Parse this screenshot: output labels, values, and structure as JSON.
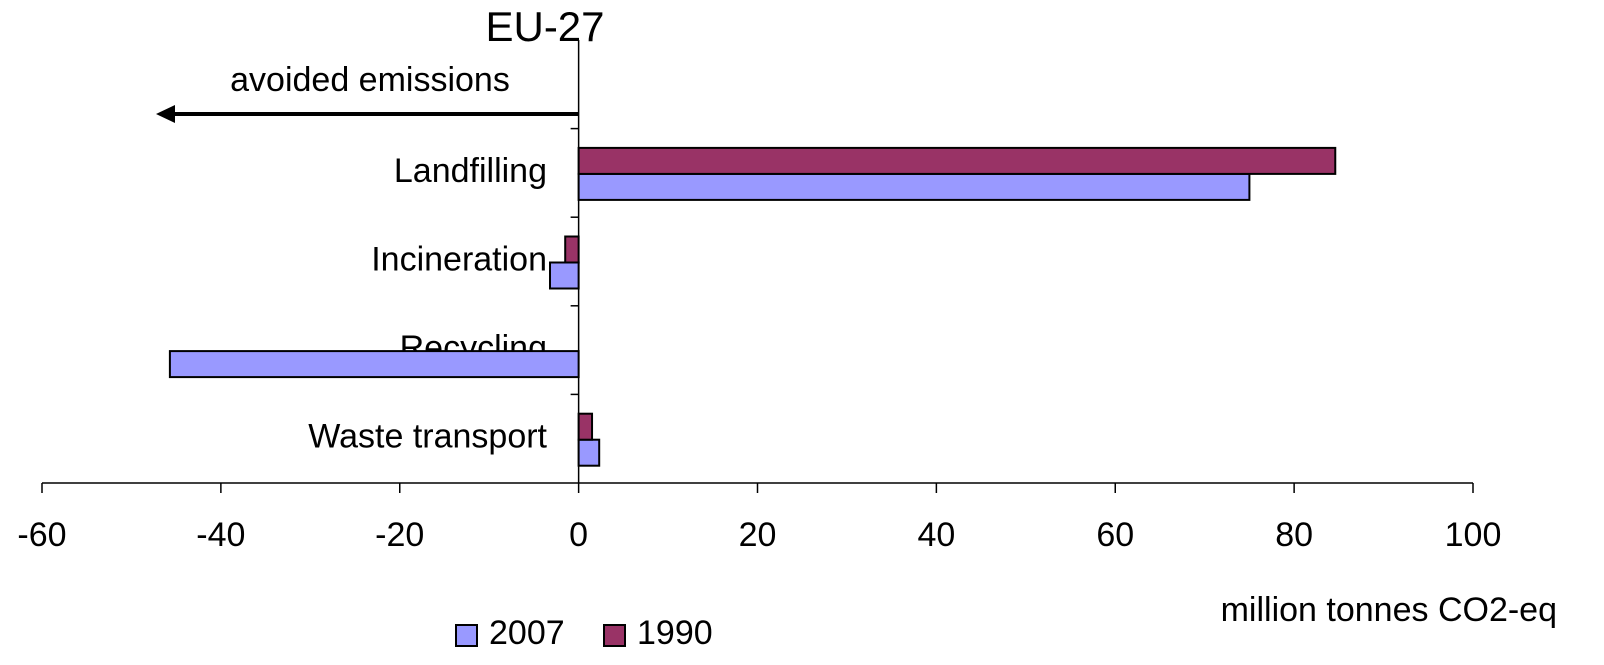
{
  "chart_data": {
    "type": "hbar",
    "title": "EU-27",
    "annotation": "avoided emissions",
    "x_label": "million tonnes CO2-eq",
    "categories": [
      null,
      "Landfilling",
      "Incineration",
      "Recycling",
      "Waste transport"
    ],
    "series": [
      {
        "name": "2007",
        "color": "#9999ff",
        "values": [
          null,
          75,
          -3.2,
          -45.7,
          2.3
        ]
      },
      {
        "name": "1990",
        "color": "#993366",
        "values": [
          null,
          84.6,
          -1.5,
          null,
          1.5
        ]
      }
    ],
    "xlim": [
      -60,
      100
    ],
    "xticks": [
      -60,
      -40,
      -20,
      0,
      20,
      40,
      60,
      80,
      100
    ],
    "legend": "bottom"
  }
}
